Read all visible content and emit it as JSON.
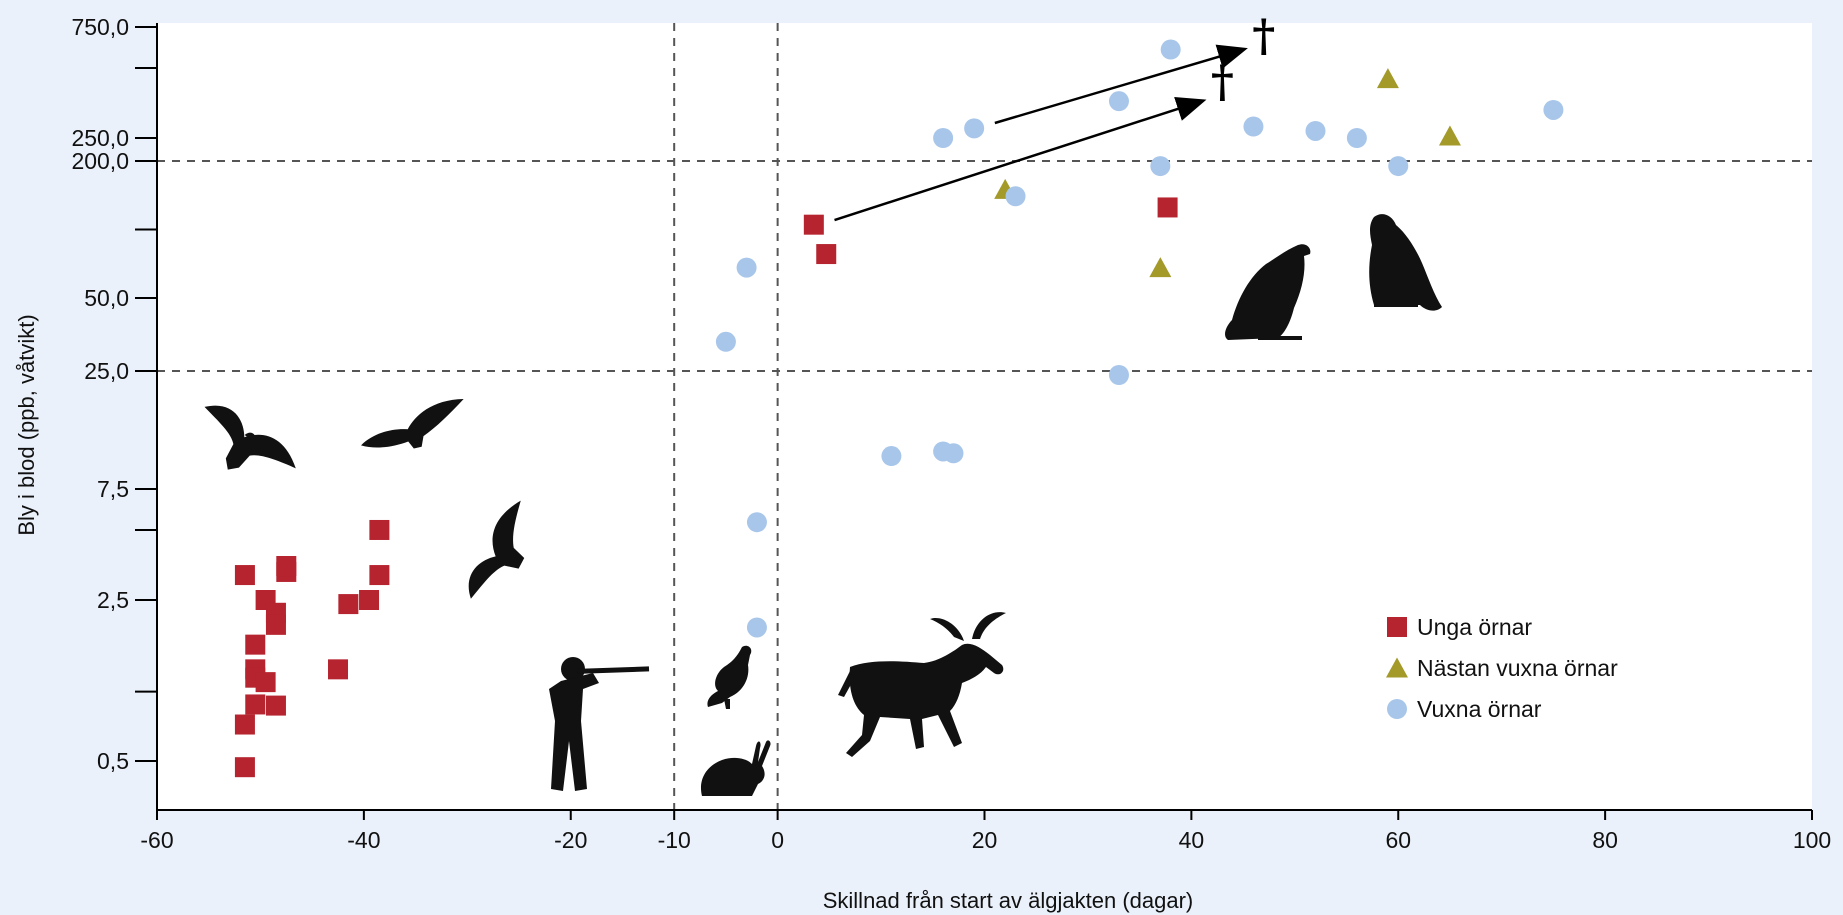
{
  "chart_data": {
    "type": "scatter",
    "xlabel": "Skillnad från start av älgjakten (dagar)",
    "ylabel": "Bly i blod (ppb, våtvikt)",
    "xlim": [
      -60,
      100
    ],
    "x_ticks": [
      -60,
      -40,
      -20,
      -10,
      0,
      20,
      40,
      60,
      80,
      100
    ],
    "x_tick_labels": [
      "-60",
      "-40",
      "-20",
      "-10",
      "0",
      "20",
      "40",
      "60",
      "80",
      "100"
    ],
    "y_ticks": [
      0.5,
      2.5,
      7.5,
      25,
      50,
      200,
      250,
      750
    ],
    "y_tick_labels": [
      "0,5",
      "2,5",
      "7,5",
      "25,0",
      "50,0",
      "200,0",
      "250,0",
      "750,0"
    ],
    "reference_lines": {
      "vertical_x": [
        -10,
        0
      ],
      "horizontal_y": [
        25,
        200
      ]
    },
    "grid": false,
    "legend_position": "bottom-right",
    "series": [
      {
        "name": "Unga örnar",
        "marker": "square",
        "color": "#b5242f",
        "points": [
          {
            "x": -51.5,
            "y": 3.2
          },
          {
            "x": -47.5,
            "y": 3.3
          },
          {
            "x": -47.5,
            "y": 3.5
          },
          {
            "x": -38.5,
            "y": 5.0
          },
          {
            "x": -38.5,
            "y": 3.2
          },
          {
            "x": -49.5,
            "y": 2.5
          },
          {
            "x": -48.5,
            "y": 2.2
          },
          {
            "x": -48.5,
            "y": 1.95
          },
          {
            "x": -50.5,
            "y": 1.6
          },
          {
            "x": -50.5,
            "y": 1.25
          },
          {
            "x": -50.5,
            "y": 1.15
          },
          {
            "x": -49.5,
            "y": 1.1
          },
          {
            "x": -50.5,
            "y": 0.88
          },
          {
            "x": -48.5,
            "y": 0.87
          },
          {
            "x": -51.5,
            "y": 0.72
          },
          {
            "x": -51.5,
            "y": 0.47
          },
          {
            "x": -41.5,
            "y": 2.4
          },
          {
            "x": -39.5,
            "y": 2.5
          },
          {
            "x": -42.5,
            "y": 1.25
          },
          {
            "x": 3.5,
            "y": 105
          },
          {
            "x": 4.7,
            "y": 78
          },
          {
            "x": 37.7,
            "y": 125
          }
        ]
      },
      {
        "name": "Nästan vuxna örnar",
        "marker": "triangle",
        "color": "#a39a2a",
        "points": [
          {
            "x": 59,
            "y": 450
          },
          {
            "x": 65,
            "y": 255
          },
          {
            "x": 22,
            "y": 150
          },
          {
            "x": 37,
            "y": 68
          }
        ]
      },
      {
        "name": "Vuxna örnar",
        "marker": "circle",
        "color": "#a8c6ea",
        "points": [
          {
            "x": 38,
            "y": 600
          },
          {
            "x": 33,
            "y": 360
          },
          {
            "x": 46,
            "y": 280
          },
          {
            "x": 52,
            "y": 268
          },
          {
            "x": 56,
            "y": 250
          },
          {
            "x": 75,
            "y": 330
          },
          {
            "x": 19,
            "y": 275
          },
          {
            "x": 16,
            "y": 250
          },
          {
            "x": 37,
            "y": 190
          },
          {
            "x": 60,
            "y": 190
          },
          {
            "x": 23,
            "y": 140
          },
          {
            "x": -3,
            "y": 68
          },
          {
            "x": -5,
            "y": 33
          },
          {
            "x": 33,
            "y": 24
          },
          {
            "x": 11,
            "y": 10.5
          },
          {
            "x": 16,
            "y": 11
          },
          {
            "x": 17,
            "y": 10.8
          },
          {
            "x": -2,
            "y": 5.4
          },
          {
            "x": -2,
            "y": 1.9
          }
        ]
      }
    ],
    "annotations": [
      {
        "type": "arrow",
        "from": {
          "x": 5.5,
          "y": 110
        },
        "to": {
          "x": 41,
          "y": 360
        }
      },
      {
        "type": "arrow",
        "from": {
          "x": 21,
          "y": 290
        },
        "to": {
          "x": 45,
          "y": 600
        }
      },
      {
        "type": "symbol",
        "text": "†",
        "at": {
          "x": 43,
          "y": 430
        }
      },
      {
        "type": "symbol",
        "text": "†",
        "at": {
          "x": 47,
          "y": 680
        }
      }
    ],
    "illustrations": [
      "eagle-flying-1-icon",
      "eagle-flying-2-icon",
      "eagle-flying-3-icon",
      "eagle-perched-1-icon",
      "eagle-perched-2-icon",
      "hunter-icon",
      "grouse-icon",
      "hare-icon",
      "moose-icon"
    ]
  }
}
